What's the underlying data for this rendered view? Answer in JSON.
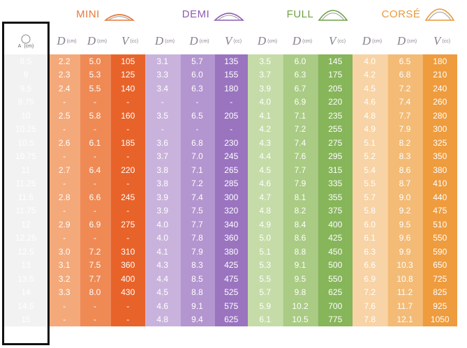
{
  "brands": [
    {
      "id": "mini",
      "name": "MINI",
      "color": "#e8793a"
    },
    {
      "id": "demi",
      "name": "DEMI",
      "color": "#8e5bb0"
    },
    {
      "id": "full",
      "name": "FULL",
      "color": "#6fa044"
    },
    {
      "id": "corse",
      "name": "CORSÉ",
      "color": "#e89a3a"
    }
  ],
  "size_header": {
    "unit": "(cm)",
    "sub": "A"
  },
  "col_headers": [
    {
      "sym": "D",
      "unit": "(cm)",
      "sub": "B"
    },
    {
      "sym": "D",
      "unit": "(cm)",
      "sub": ""
    },
    {
      "sym": "V",
      "unit": "(cc)",
      "sub": ""
    }
  ],
  "palette": {
    "mini": [
      "#f4a97a",
      "#ef8a55",
      "#e8632a",
      "#f6bf9c",
      "#f2a57c",
      "#eb8451"
    ],
    "demi": [
      "#c9b3dc",
      "#b395cf",
      "#9a74bf",
      "#dccbea",
      "#c6aedd",
      "#b293cd"
    ],
    "full": [
      "#c5dca8",
      "#a9cb83",
      "#87b55a",
      "#d6e7c2",
      "#bfd8a0",
      "#a4c87e"
    ],
    "corse": [
      "#f7d3a5",
      "#f3bb76",
      "#ee9c3e",
      "#f9dfbd",
      "#f6cb95",
      "#f2b466"
    ]
  },
  "rows": [
    {
      "size": "8.5",
      "mini": [
        "2.2",
        "5.0",
        "105"
      ],
      "demi": [
        "3.1",
        "5.7",
        "135"
      ],
      "full": [
        "3.5",
        "6.0",
        "145"
      ],
      "corse": [
        "4.0",
        "6.5",
        "180"
      ]
    },
    {
      "size": "9",
      "mini": [
        "2.3",
        "5.3",
        "125"
      ],
      "demi": [
        "3.3",
        "6.0",
        "155"
      ],
      "full": [
        "3.7",
        "6.3",
        "175"
      ],
      "corse": [
        "4.2",
        "6.8",
        "210"
      ]
    },
    {
      "size": "9.5",
      "mini": [
        "2.4",
        "5.5",
        "140"
      ],
      "demi": [
        "3.4",
        "6.3",
        "180"
      ],
      "full": [
        "3.9",
        "6.7",
        "205"
      ],
      "corse": [
        "4.5",
        "7.2",
        "240"
      ]
    },
    {
      "size": "9.75",
      "mini": [
        "-",
        "-",
        "-"
      ],
      "demi": [
        "-",
        "-",
        "-"
      ],
      "full": [
        "4.0",
        "6.9",
        "220"
      ],
      "corse": [
        "4.6",
        "7.4",
        "260"
      ]
    },
    {
      "size": "10",
      "mini": [
        "2.5",
        "5.8",
        "160"
      ],
      "demi": [
        "3.5",
        "6.5",
        "205"
      ],
      "full": [
        "4.1",
        "7.1",
        "235"
      ],
      "corse": [
        "4.8",
        "7.7",
        "280"
      ]
    },
    {
      "size": "10.25",
      "mini": [
        "-",
        "-",
        "-"
      ],
      "demi": [
        "-",
        "-",
        "-"
      ],
      "full": [
        "4.2",
        "7.2",
        "255"
      ],
      "corse": [
        "4.9",
        "7.9",
        "300"
      ]
    },
    {
      "size": "10.5",
      "mini": [
        "2.6",
        "6.1",
        "185"
      ],
      "demi": [
        "3.6",
        "6.8",
        "230"
      ],
      "full": [
        "4.3",
        "7.4",
        "275"
      ],
      "corse": [
        "5.1",
        "8.2",
        "325"
      ]
    },
    {
      "size": "10.75",
      "mini": [
        "-",
        "-",
        "-"
      ],
      "demi": [
        "3.7",
        "7.0",
        "245"
      ],
      "full": [
        "4.4",
        "7.6",
        "295"
      ],
      "corse": [
        "5.2",
        "8.3",
        "350"
      ]
    },
    {
      "size": "11",
      "mini": [
        "2.7",
        "6.4",
        "220"
      ],
      "demi": [
        "3.8",
        "7.1",
        "265"
      ],
      "full": [
        "4.5",
        "7.7",
        "315"
      ],
      "corse": [
        "5.4",
        "8.6",
        "380"
      ]
    },
    {
      "size": "11.25",
      "mini": [
        "-",
        "-",
        "-"
      ],
      "demi": [
        "3.8",
        "7.2",
        "285"
      ],
      "full": [
        "4.6",
        "7.9",
        "335"
      ],
      "corse": [
        "5.5",
        "8.7",
        "410"
      ]
    },
    {
      "size": "11.5",
      "mini": [
        "2.8",
        "6.6",
        "245"
      ],
      "demi": [
        "3.9",
        "7.4",
        "300"
      ],
      "full": [
        "4.7",
        "8.1",
        "355"
      ],
      "corse": [
        "5.7",
        "9.0",
        "440"
      ]
    },
    {
      "size": "11.75",
      "mini": [
        "-",
        "-",
        "-"
      ],
      "demi": [
        "3.9",
        "7.5",
        "320"
      ],
      "full": [
        "4.8",
        "8.2",
        "375"
      ],
      "corse": [
        "5.8",
        "9.2",
        "475"
      ]
    },
    {
      "size": "12",
      "mini": [
        "2.9",
        "6.9",
        "275"
      ],
      "demi": [
        "4.0",
        "7.7",
        "340"
      ],
      "full": [
        "4.9",
        "8.4",
        "400"
      ],
      "corse": [
        "6.0",
        "9.5",
        "510"
      ]
    },
    {
      "size": "12.25",
      "mini": [
        "-",
        "-",
        "-"
      ],
      "demi": [
        "4.0",
        "7.8",
        "360"
      ],
      "full": [
        "5.0",
        "8.6",
        "425"
      ],
      "corse": [
        "6.1",
        "9.6",
        "550"
      ]
    },
    {
      "size": "12.5",
      "mini": [
        "3.0",
        "7.2",
        "310"
      ],
      "demi": [
        "4.1",
        "7.9",
        "380"
      ],
      "full": [
        "5.1",
        "8.8",
        "450"
      ],
      "corse": [
        "6.3",
        "9.9",
        "590"
      ]
    },
    {
      "size": "13",
      "mini": [
        "3.1",
        "7.5",
        "360"
      ],
      "demi": [
        "4.3",
        "8.3",
        "425"
      ],
      "full": [
        "5.3",
        "9.1",
        "500"
      ],
      "corse": [
        "6.6",
        "10.3",
        "650"
      ]
    },
    {
      "size": "13.5",
      "mini": [
        "3.2",
        "7.7",
        "400"
      ],
      "demi": [
        "4.4",
        "8.5",
        "475"
      ],
      "full": [
        "5.5",
        "9.5",
        "550"
      ],
      "corse": [
        "6.9",
        "10.8",
        "725"
      ]
    },
    {
      "size": "14",
      "mini": [
        "3.3",
        "8.0",
        "430"
      ],
      "demi": [
        "4.5",
        "8.8",
        "525"
      ],
      "full": [
        "5.7",
        "9.8",
        "625"
      ],
      "corse": [
        "7.2",
        "11.2",
        "825"
      ]
    },
    {
      "size": "14.5",
      "mini": [
        "-",
        "-",
        "-"
      ],
      "demi": [
        "4.6",
        "9.1",
        "575"
      ],
      "full": [
        "5.9",
        "10.2",
        "700"
      ],
      "corse": [
        "7.6",
        "11.7",
        "925"
      ]
    },
    {
      "size": "15",
      "mini": [
        "-",
        "-",
        "-"
      ],
      "demi": [
        "4.8",
        "9.4",
        "625"
      ],
      "full": [
        "6.1",
        "10.5",
        "775"
      ],
      "corse": [
        "7.8",
        "12.1",
        "1050"
      ]
    }
  ]
}
